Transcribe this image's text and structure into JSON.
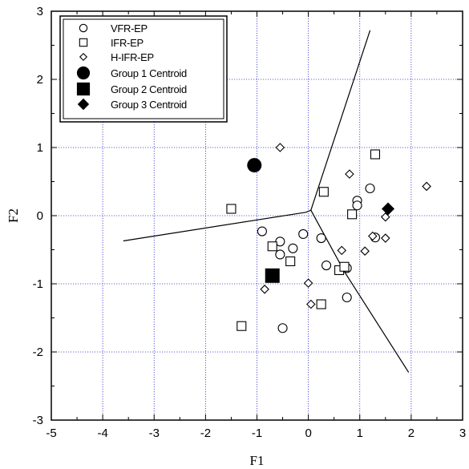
{
  "chart_data": {
    "type": "scatter",
    "title": "",
    "xlabel": "F1",
    "ylabel": "F2",
    "xlim": [
      -5,
      3
    ],
    "ylim": [
      -3,
      3
    ],
    "xticks": [
      "-5",
      "-4",
      "-3",
      "-2",
      "-1",
      "0",
      "1",
      "2",
      "3"
    ],
    "yticks": [
      "-3",
      "-2",
      "-1",
      "0",
      "1",
      "2",
      "3"
    ],
    "grid": true,
    "legend_position": "top-left",
    "legend": [
      {
        "label": "VFR-EP",
        "marker": "circle-open"
      },
      {
        "label": "IFR-EP",
        "marker": "square-open"
      },
      {
        "label": "H-IFR-EP",
        "marker": "diamond-open"
      },
      {
        "label": "Group 1 Centroid",
        "marker": "circle-filled"
      },
      {
        "label": "Group 2 Centroid",
        "marker": "square-filled"
      },
      {
        "label": "Group 3 Centroid",
        "marker": "diamond-filled"
      }
    ],
    "series": [
      {
        "name": "VFR-EP",
        "marker": "circle-open",
        "points": [
          [
            -0.9,
            -0.23
          ],
          [
            -0.55,
            -0.38
          ],
          [
            -0.3,
            -0.48
          ],
          [
            -0.1,
            -0.27
          ],
          [
            -0.55,
            -0.57
          ],
          [
            0.25,
            -0.33
          ],
          [
            0.35,
            -0.73
          ],
          [
            0.75,
            -0.77
          ],
          [
            0.95,
            0.22
          ],
          [
            1.2,
            0.4
          ],
          [
            1.3,
            -0.32
          ],
          [
            0.75,
            -1.2
          ],
          [
            -0.5,
            -1.65
          ],
          [
            0.95,
            0.15
          ]
        ]
      },
      {
        "name": "IFR-EP",
        "marker": "square-open",
        "points": [
          [
            -1.5,
            0.1
          ],
          [
            -0.7,
            -0.45
          ],
          [
            -0.35,
            -0.67
          ],
          [
            0.3,
            0.35
          ],
          [
            0.85,
            0.02
          ],
          [
            1.3,
            0.9
          ],
          [
            0.6,
            -0.8
          ],
          [
            0.7,
            -0.75
          ],
          [
            0.25,
            -1.3
          ],
          [
            -1.3,
            -1.62
          ]
        ]
      },
      {
        "name": "H-IFR-EP",
        "marker": "diamond-open",
        "points": [
          [
            -0.55,
            1.0
          ],
          [
            0.8,
            0.61
          ],
          [
            0.65,
            -0.51
          ],
          [
            1.1,
            -0.52
          ],
          [
            1.25,
            -0.3
          ],
          [
            1.5,
            -0.33
          ],
          [
            1.5,
            -0.02
          ],
          [
            2.3,
            0.43
          ],
          [
            0.0,
            -0.99
          ],
          [
            -0.85,
            -1.08
          ],
          [
            0.05,
            -1.3
          ]
        ]
      },
      {
        "name": "Group 1 Centroid",
        "marker": "circle-filled",
        "points": [
          [
            -1.05,
            0.74
          ]
        ]
      },
      {
        "name": "Group 2 Centroid",
        "marker": "square-filled",
        "points": [
          [
            -0.7,
            -0.88
          ]
        ]
      },
      {
        "name": "Group 3 Centroid",
        "marker": "diamond-filled",
        "points": [
          [
            1.55,
            0.1
          ]
        ]
      }
    ],
    "boundaries": [
      [
        [
          -3.6,
          -0.37
        ],
        [
          -0.05,
          0.05
        ],
        [
          0.05,
          0.08
        ]
      ],
      [
        [
          0.05,
          0.08
        ],
        [
          1.2,
          2.72
        ]
      ],
      [
        [
          0.05,
          0.08
        ],
        [
          0.7,
          -0.82
        ],
        [
          1.95,
          -2.3
        ]
      ]
    ],
    "colors": {
      "grid": "#3333cc",
      "ink": "#000000"
    }
  }
}
